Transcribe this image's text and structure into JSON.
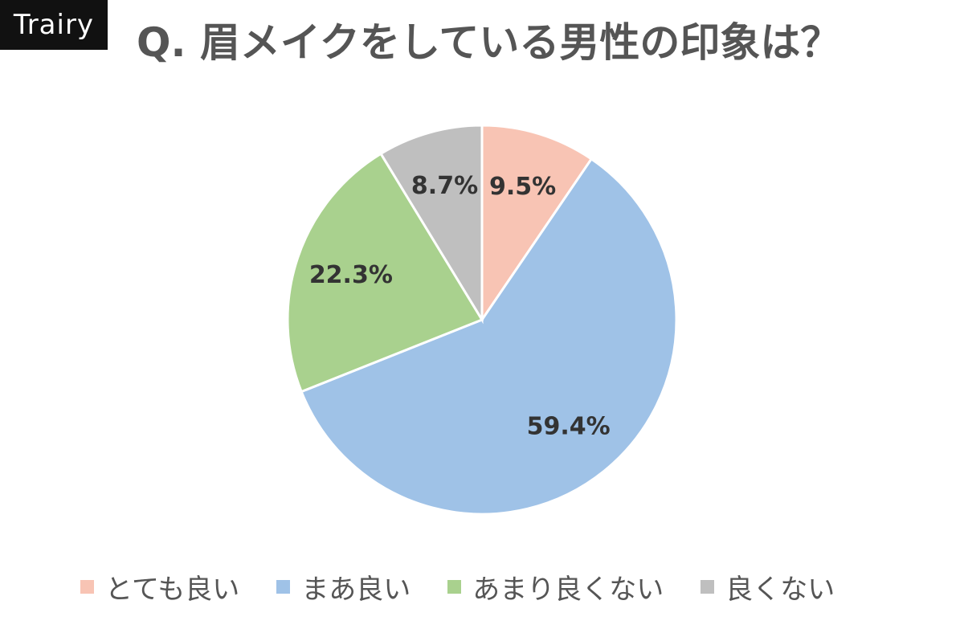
{
  "brand": {
    "text": "Trairy"
  },
  "chart_data": {
    "type": "pie",
    "title": "Q. 眉メイクをしている男性の印象は？",
    "slices": [
      {
        "label": "とても良い",
        "value": 9.5,
        "display": "9.5%",
        "color": "#f8c4b4"
      },
      {
        "label": "まあ良い",
        "value": 59.4,
        "display": "59.4%",
        "color": "#9fc2e7"
      },
      {
        "label": "あまり良くない",
        "value": 22.3,
        "display": "22.3%",
        "color": "#a9d18e"
      },
      {
        "label": "良くない",
        "value": 8.7,
        "display": "8.7%",
        "color": "#bfbfbf"
      }
    ],
    "legend": {
      "placement": "bottom"
    }
  }
}
